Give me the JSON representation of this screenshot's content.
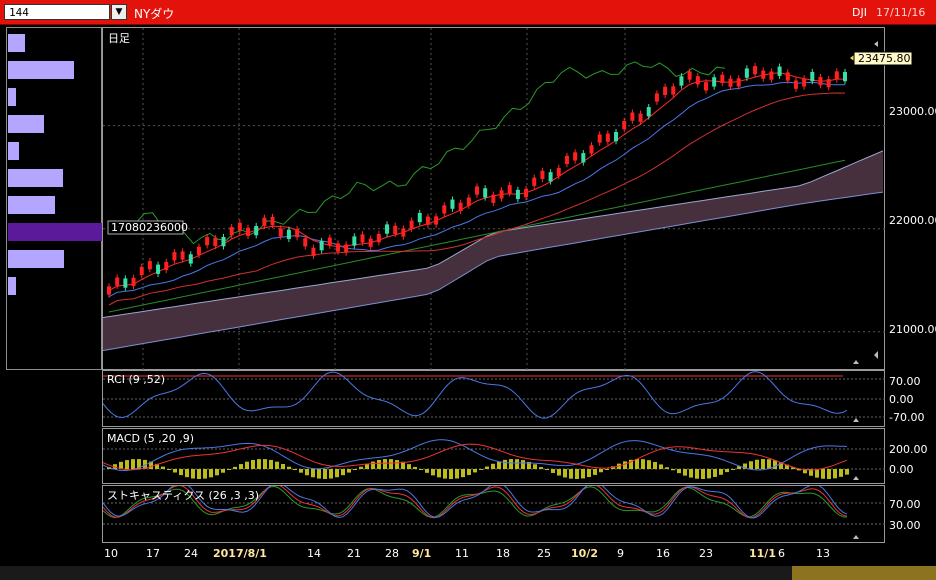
{
  "header": {
    "code_value": "144",
    "dropdown_glyph": "▼",
    "instrument_name": "NYダウ",
    "symbol": "DJI",
    "date": "17/11/16",
    "accent_color": "#e3120b"
  },
  "main_chart": {
    "period_label": "日足",
    "volume_marker": "17080236000",
    "last_price": "23475.80",
    "y_ticks": [
      "23000.00",
      "22000.00",
      "21000.00"
    ]
  },
  "x_axis": {
    "ticks": [
      "10",
      "17",
      "24",
      "2017/8/1",
      "14",
      "21",
      "28",
      "9/1",
      "11",
      "18",
      "25",
      "10/2",
      "9",
      "16",
      "23",
      "11/1",
      "6",
      "13"
    ]
  },
  "rci": {
    "label": "RCI (9 ,52)",
    "ticks": [
      "70.00",
      "0.00",
      "-70.00"
    ]
  },
  "macd": {
    "label": "MACD (5 ,20 ,9)",
    "ticks": [
      "200.00",
      "0.00"
    ]
  },
  "stoch": {
    "label": "ストキャスティクス (26 ,3 ,3)",
    "ticks": [
      "70.00",
      "30.00"
    ]
  },
  "volume_profile": {
    "values": [
      0.18,
      0.7,
      0.08,
      0.38,
      0.12,
      0.58,
      0.5,
      1.0,
      0.6,
      0.09
    ],
    "highlight_index": 7
  },
  "chart_data": {
    "type": "line",
    "title": "",
    "xlabel": "",
    "ylabel": "",
    "x": [
      "7/10",
      "7/17",
      "7/24",
      "8/1",
      "8/14",
      "8/21",
      "8/28",
      "9/1",
      "9/11",
      "9/18",
      "9/25",
      "10/2",
      "10/9",
      "10/16",
      "10/23",
      "11/1",
      "11/6",
      "11/13",
      "11/16"
    ],
    "series": [
      {
        "name": "",
        "values": [
          21400,
          21610,
          21750,
          21960,
          22050,
          21820,
          21850,
          21980,
          22120,
          22330,
          22340,
          22580,
          22830,
          23100,
          23450,
          23410,
          23530,
          23420,
          23475.8
        ]
      }
    ],
    "ylim": [
      20600,
      23850
    ],
    "grid": true
  }
}
